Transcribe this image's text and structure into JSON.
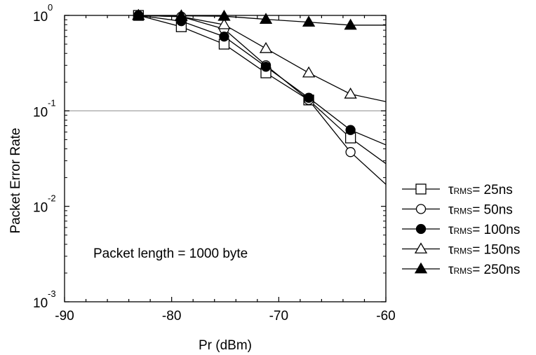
{
  "chart_data": {
    "type": "line",
    "title": "",
    "xlabel": "Pr (dBm)",
    "ylabel": "Packet Error Rate",
    "xlim": [
      -90,
      -60
    ],
    "ylim": [
      0.001,
      1
    ],
    "yscale": "log",
    "grid": false,
    "legend_position": "right",
    "x_ticks": [
      -90,
      -80,
      -70,
      -60
    ],
    "x_tick_labels": [
      "-90",
      "-80",
      "-70",
      "-60"
    ],
    "y_ticks": [
      1,
      0.1,
      0.01,
      0.001
    ],
    "y_tick_bases": [
      "10",
      "10",
      "10",
      "10"
    ],
    "y_tick_exponents": [
      "0",
      "-1",
      "-2",
      "-3"
    ],
    "reference_line_y": 0.1,
    "annotation": "Packet length = 1000 byte",
    "series": [
      {
        "name": "τRMS= 25ns",
        "symbol": "τ",
        "subscript": "RMS",
        "value_text": "= 25ns",
        "marker": "square-open",
        "x": [
          -83.1,
          -79.1,
          -75.1,
          -71.2,
          -67.2,
          -63.3,
          -60
        ],
        "y": [
          1.0,
          0.76,
          0.5,
          0.25,
          0.13,
          0.052,
          0.028
        ]
      },
      {
        "name": "τRMS= 50ns",
        "symbol": "τ",
        "subscript": "RMS",
        "value_text": "= 50ns",
        "marker": "circle-open",
        "x": [
          -83.1,
          -79.1,
          -75.1,
          -71.2,
          -67.2,
          -63.3,
          -60
        ],
        "y": [
          1.0,
          0.97,
          0.72,
          0.3,
          0.13,
          0.037,
          0.017
        ]
      },
      {
        "name": "τRMS= 100ns",
        "symbol": "τ",
        "subscript": "RMS",
        "value_text": "= 100ns",
        "marker": "circle-filled",
        "x": [
          -83.1,
          -79.1,
          -75.1,
          -71.2,
          -67.2,
          -63.3,
          -60
        ],
        "y": [
          1.0,
          0.87,
          0.6,
          0.29,
          0.137,
          0.063,
          0.044
        ]
      },
      {
        "name": "τRMS= 150ns",
        "symbol": "τ",
        "subscript": "RMS",
        "value_text": "= 150ns",
        "marker": "triangle-open",
        "x": [
          -83.1,
          -79.1,
          -75.1,
          -71.2,
          -67.2,
          -63.3,
          -60
        ],
        "y": [
          1.0,
          0.97,
          0.8,
          0.45,
          0.25,
          0.15,
          0.125
        ]
      },
      {
        "name": "τRMS= 250ns",
        "symbol": "τ",
        "subscript": "RMS",
        "value_text": "= 250ns",
        "marker": "triangle-filled",
        "x": [
          -83.1,
          -79.1,
          -75.1,
          -71.2,
          -67.2,
          -63.3,
          -60
        ],
        "y": [
          1.0,
          0.99,
          0.98,
          0.91,
          0.85,
          0.79,
          0.79
        ]
      }
    ]
  }
}
